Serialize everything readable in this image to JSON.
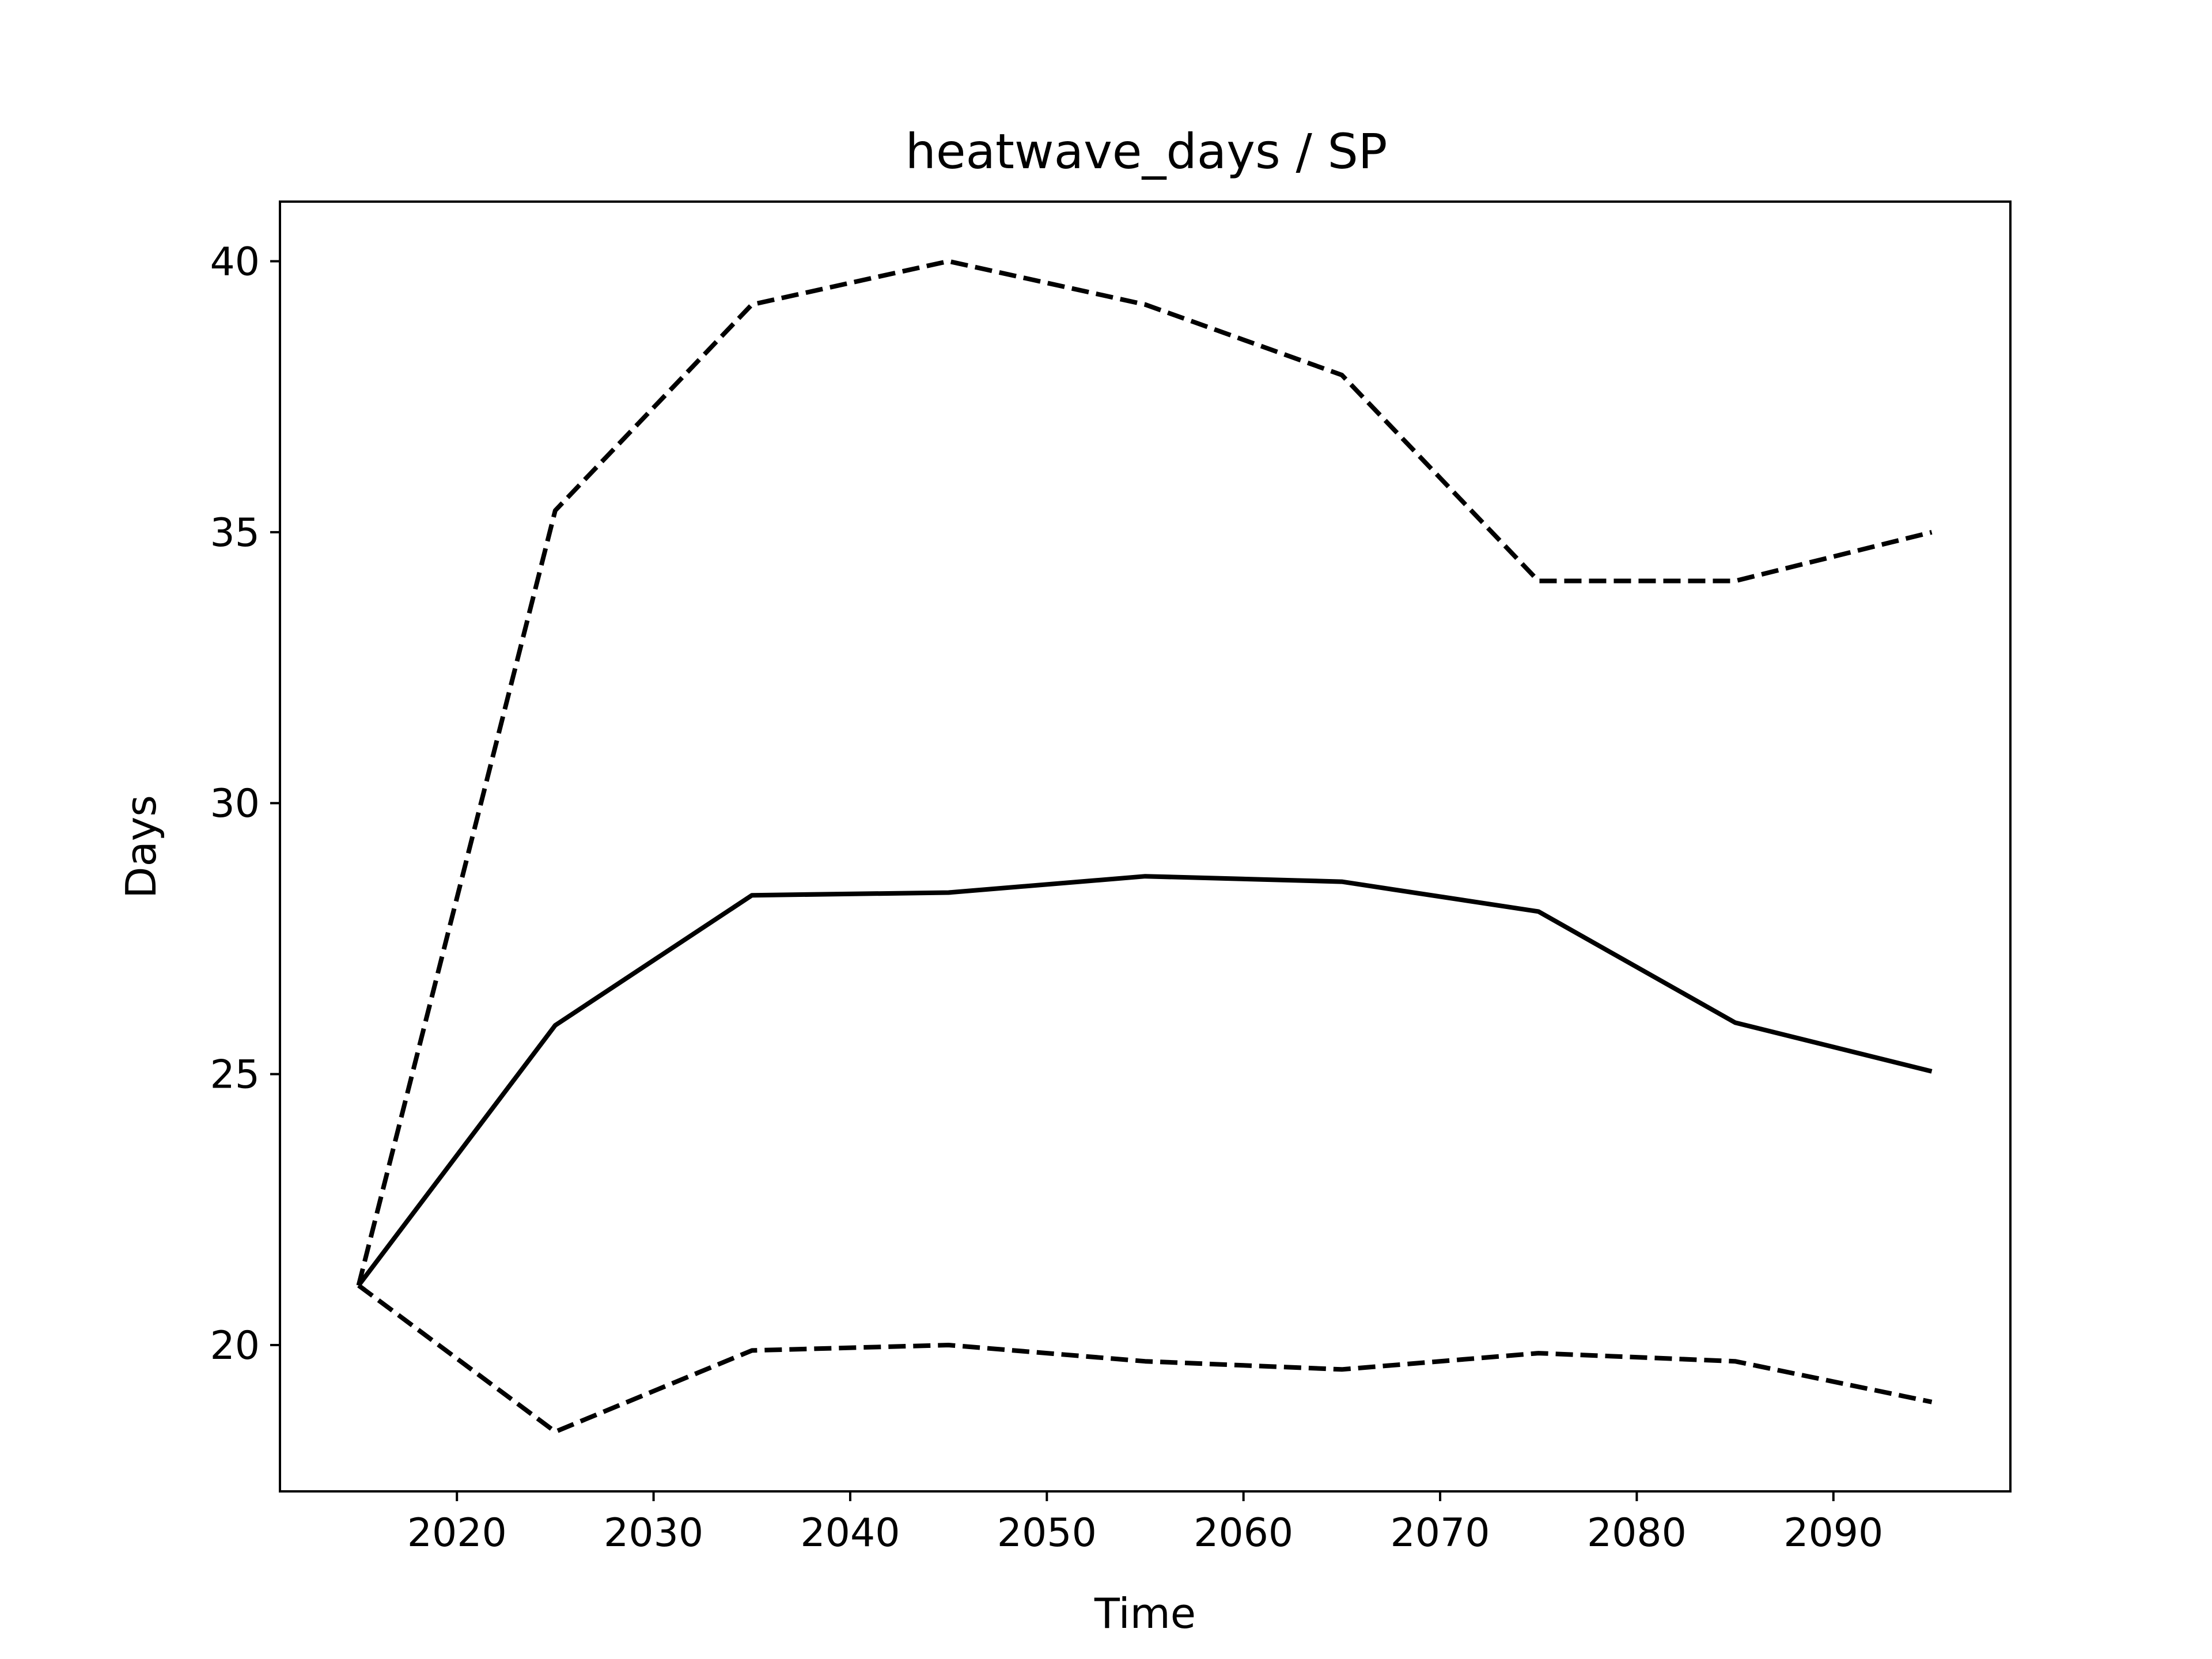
{
  "chart_data": {
    "type": "line",
    "title": "heatwave_days / SP",
    "xlabel": "Time",
    "ylabel": "Days",
    "xlim": [
      2011,
      2099
    ],
    "ylim": [
      17.3,
      41.1
    ],
    "xticks": [
      2020,
      2030,
      2040,
      2050,
      2060,
      2070,
      2080,
      2090
    ],
    "yticks": [
      20,
      25,
      30,
      35,
      40
    ],
    "grid": false,
    "x": [
      2015,
      2025,
      2035,
      2045,
      2055,
      2065,
      2075,
      2085,
      2095
    ],
    "series": [
      {
        "style": "solid",
        "color": "#000000",
        "values": [
          21.1,
          25.9,
          28.3,
          28.35,
          28.65,
          28.55,
          28.0,
          25.95,
          25.05
        ]
      },
      {
        "style": "dashed",
        "color": "#000000",
        "values": [
          21.1,
          35.4,
          39.2,
          40.0,
          39.2,
          37.9,
          34.1,
          34.1,
          35.0
        ]
      },
      {
        "style": "dashed",
        "color": "#000000",
        "values": [
          21.1,
          18.4,
          19.9,
          20.0,
          19.7,
          19.55,
          19.85,
          19.7,
          18.95
        ]
      }
    ]
  }
}
